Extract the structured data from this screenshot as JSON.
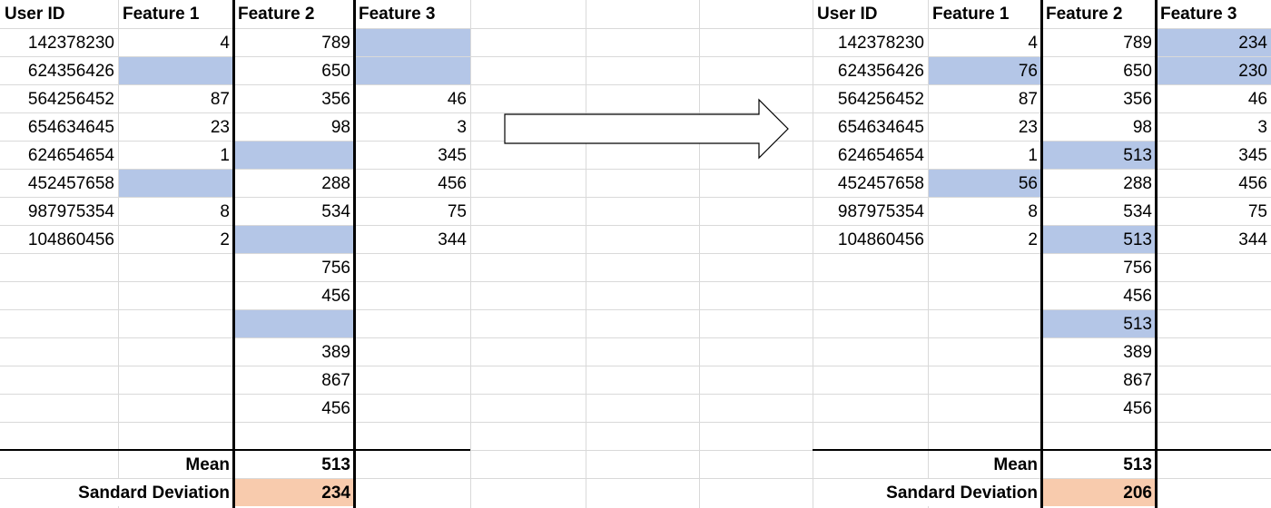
{
  "colors": {
    "missing_highlight": "#b4c6e7",
    "std_highlight": "#f8cbad",
    "gridline": "#d9d9d9"
  },
  "arrow_icon": "right-arrow-icon",
  "before": {
    "headers": [
      "User ID",
      "Feature 1",
      "Feature 2",
      "Feature 3"
    ],
    "rows": [
      {
        "cells": [
          "142378230",
          "4",
          "789",
          ""
        ],
        "missing": [
          false,
          false,
          false,
          true
        ]
      },
      {
        "cells": [
          "624356426",
          "",
          "650",
          ""
        ],
        "missing": [
          false,
          true,
          false,
          true
        ]
      },
      {
        "cells": [
          "564256452",
          "87",
          "356",
          "46"
        ],
        "missing": [
          false,
          false,
          false,
          false
        ]
      },
      {
        "cells": [
          "654634645",
          "23",
          "98",
          "3"
        ],
        "missing": [
          false,
          false,
          false,
          false
        ]
      },
      {
        "cells": [
          "624654654",
          "1",
          "",
          "345"
        ],
        "missing": [
          false,
          false,
          true,
          false
        ]
      },
      {
        "cells": [
          "452457658",
          "",
          "288",
          "456"
        ],
        "missing": [
          false,
          true,
          false,
          false
        ]
      },
      {
        "cells": [
          "987975354",
          "8",
          "534",
          "75"
        ],
        "missing": [
          false,
          false,
          false,
          false
        ]
      },
      {
        "cells": [
          "104860456",
          "2",
          "",
          "344"
        ],
        "missing": [
          false,
          false,
          true,
          false
        ]
      },
      {
        "cells": [
          "",
          "",
          "756",
          ""
        ],
        "missing": [
          false,
          false,
          false,
          false
        ]
      },
      {
        "cells": [
          "",
          "",
          "456",
          ""
        ],
        "missing": [
          false,
          false,
          false,
          false
        ]
      },
      {
        "cells": [
          "",
          "",
          "",
          ""
        ],
        "missing": [
          false,
          false,
          true,
          false
        ]
      },
      {
        "cells": [
          "",
          "",
          "389",
          ""
        ],
        "missing": [
          false,
          false,
          false,
          false
        ]
      },
      {
        "cells": [
          "",
          "",
          "867",
          ""
        ],
        "missing": [
          false,
          false,
          false,
          false
        ]
      },
      {
        "cells": [
          "",
          "",
          "456",
          ""
        ],
        "missing": [
          false,
          false,
          false,
          false
        ]
      },
      {
        "cells": [
          "",
          "",
          "",
          ""
        ],
        "missing": [
          false,
          false,
          false,
          false
        ]
      }
    ],
    "mean_label": "Mean",
    "mean_value": "513",
    "std_label": "Sandard Deviation",
    "std_value": "234"
  },
  "after": {
    "headers": [
      "User ID",
      "Feature 1",
      "Feature 2",
      "Feature 3"
    ],
    "rows": [
      {
        "cells": [
          "142378230",
          "4",
          "789",
          "234"
        ],
        "missing": [
          false,
          false,
          false,
          true
        ]
      },
      {
        "cells": [
          "624356426",
          "76",
          "650",
          "230"
        ],
        "missing": [
          false,
          true,
          false,
          true
        ]
      },
      {
        "cells": [
          "564256452",
          "87",
          "356",
          "46"
        ],
        "missing": [
          false,
          false,
          false,
          false
        ]
      },
      {
        "cells": [
          "654634645",
          "23",
          "98",
          "3"
        ],
        "missing": [
          false,
          false,
          false,
          false
        ]
      },
      {
        "cells": [
          "624654654",
          "1",
          "513",
          "345"
        ],
        "missing": [
          false,
          false,
          true,
          false
        ]
      },
      {
        "cells": [
          "452457658",
          "56",
          "288",
          "456"
        ],
        "missing": [
          false,
          true,
          false,
          false
        ]
      },
      {
        "cells": [
          "987975354",
          "8",
          "534",
          "75"
        ],
        "missing": [
          false,
          false,
          false,
          false
        ]
      },
      {
        "cells": [
          "104860456",
          "2",
          "513",
          "344"
        ],
        "missing": [
          false,
          false,
          true,
          false
        ]
      },
      {
        "cells": [
          "",
          "",
          "756",
          ""
        ],
        "missing": [
          false,
          false,
          false,
          false
        ]
      },
      {
        "cells": [
          "",
          "",
          "456",
          ""
        ],
        "missing": [
          false,
          false,
          false,
          false
        ]
      },
      {
        "cells": [
          "",
          "",
          "513",
          ""
        ],
        "missing": [
          false,
          false,
          true,
          false
        ]
      },
      {
        "cells": [
          "",
          "",
          "389",
          ""
        ],
        "missing": [
          false,
          false,
          false,
          false
        ]
      },
      {
        "cells": [
          "",
          "",
          "867",
          ""
        ],
        "missing": [
          false,
          false,
          false,
          false
        ]
      },
      {
        "cells": [
          "",
          "",
          "456",
          ""
        ],
        "missing": [
          false,
          false,
          false,
          false
        ]
      },
      {
        "cells": [
          "",
          "",
          "",
          ""
        ],
        "missing": [
          false,
          false,
          false,
          false
        ]
      }
    ],
    "mean_label": "Mean",
    "mean_value": "513",
    "std_label": "Sandard Deviation",
    "std_value": "206"
  }
}
